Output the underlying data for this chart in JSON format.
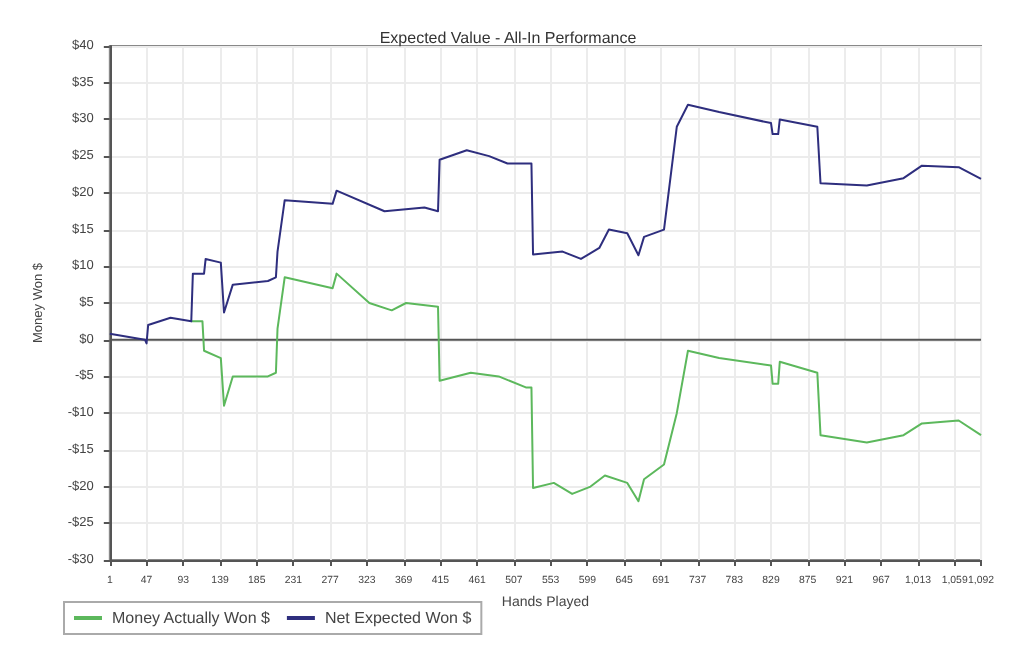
{
  "chart_data": {
    "type": "line",
    "title": "Expected Value - All-In Performance",
    "xlabel": "Hands Played",
    "ylabel": "Money Won $",
    "xlim": [
      1,
      1092
    ],
    "xticks": [
      1,
      47,
      93,
      139,
      185,
      231,
      277,
      323,
      369,
      415,
      461,
      507,
      553,
      599,
      645,
      691,
      737,
      783,
      829,
      875,
      921,
      967,
      {
        "value": 1013,
        "label": "1,013"
      },
      {
        "value": 1059,
        "label": "1,059"
      },
      {
        "value": 1092,
        "label": "1,092"
      }
    ],
    "ylim": [
      -30,
      40
    ],
    "yticks": [
      {
        "value": -30,
        "label": "-$30"
      },
      {
        "value": -25,
        "label": "-$25"
      },
      {
        "value": -20,
        "label": "-$20"
      },
      {
        "value": -15,
        "label": "-$15"
      },
      {
        "value": -10,
        "label": "-$10"
      },
      {
        "value": -5,
        "label": "-$5"
      },
      {
        "value": 0,
        "label": "$0"
      },
      {
        "value": 5,
        "label": "$5"
      },
      {
        "value": 10,
        "label": "$10"
      },
      {
        "value": 15,
        "label": "$15"
      },
      {
        "value": 20,
        "label": "$20"
      },
      {
        "value": 25,
        "label": "$25"
      },
      {
        "value": 30,
        "label": "$30"
      },
      {
        "value": 35,
        "label": "$35"
      },
      {
        "value": 40,
        "label": "$40"
      }
    ],
    "grid": true,
    "legend": "bottom left",
    "marker": "none",
    "line_style": "solid",
    "ref_lines": [
      {
        "axis": "y",
        "value": 0,
        "color": "#555555"
      }
    ],
    "series": [
      {
        "name": "Money Actually Won $",
        "color": "#5cb85c",
        "x": [
          103,
          117,
          119,
          140,
          144,
          155,
          199,
          209,
          211,
          220,
          280,
          285,
          326,
          354,
          372,
          412,
          414,
          453,
          488,
          522,
          529,
          531,
          557,
          580,
          603,
          621,
          649,
          663,
          670,
          695,
          711,
          725,
          764,
          829,
          831,
          838,
          840,
          887,
          891,
          949,
          995,
          1018,
          1064,
          1092
        ],
        "values": [
          2.5,
          2.5,
          -1.5,
          -2.5,
          -9,
          -5,
          -5,
          -4.5,
          1.5,
          8.5,
          7,
          9,
          5,
          4,
          5,
          4.5,
          -5.6,
          -4.5,
          -5,
          -6.5,
          -6.5,
          -20.2,
          -19.5,
          -21,
          -20,
          -18.5,
          -19.5,
          -22,
          -19,
          -17,
          -10,
          -1.5,
          -2.5,
          -3.5,
          -6,
          -6,
          -3,
          -4.5,
          -13,
          -14,
          -13,
          -11.4,
          -11,
          -13
        ]
      },
      {
        "name": "Net Expected Won $",
        "color": "#2e2e7e",
        "x": [
          1,
          45,
          47,
          49,
          77,
          103,
          105,
          119,
          121,
          140,
          144,
          155,
          199,
          209,
          211,
          220,
          280,
          285,
          345,
          395,
          412,
          414,
          448,
          476,
          499,
          529,
          531,
          568,
          591,
          614,
          626,
          649,
          663,
          670,
          695,
          711,
          725,
          764,
          829,
          831,
          838,
          840,
          887,
          891,
          949,
          995,
          1018,
          1064,
          1092
        ],
        "values": [
          0.8,
          0,
          -0.5,
          2,
          3,
          2.5,
          9,
          9,
          11,
          10.5,
          3.7,
          7.5,
          8,
          8.5,
          12,
          19,
          18.5,
          20.3,
          17.5,
          18,
          17.5,
          24.5,
          25.8,
          25,
          24,
          24,
          11.6,
          12,
          11,
          12.5,
          15,
          14.5,
          11.5,
          14,
          15,
          29,
          32,
          31,
          29.5,
          28,
          28,
          30,
          29,
          21.3,
          21,
          22,
          23.7,
          23.5,
          21.9
        ]
      }
    ]
  }
}
